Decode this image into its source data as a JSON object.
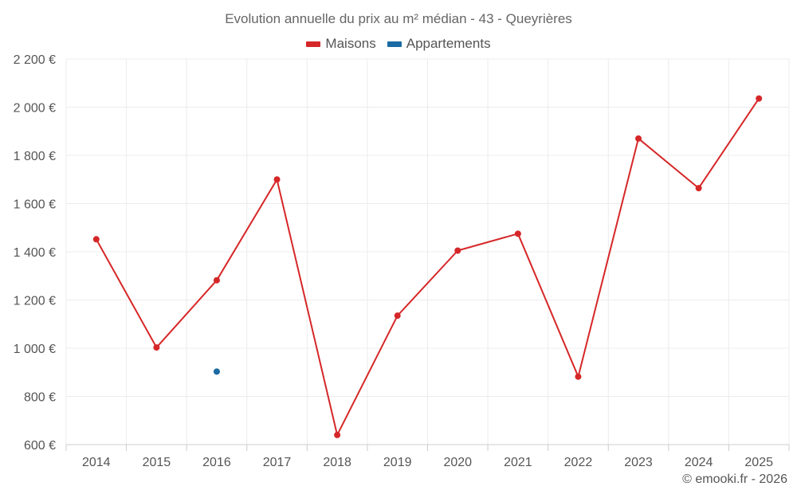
{
  "chart_data": {
    "type": "line",
    "title": "Evolution annuelle du prix au m² médian - 43 - Queyrières",
    "xlabel": "",
    "ylabel": "",
    "categories": [
      "2014",
      "2015",
      "2016",
      "2017",
      "2018",
      "2019",
      "2020",
      "2021",
      "2022",
      "2023",
      "2024",
      "2025"
    ],
    "ylim": [
      600,
      2200
    ],
    "y_ticks": [
      600,
      800,
      1000,
      1200,
      1400,
      1600,
      1800,
      2000,
      2200
    ],
    "y_tick_labels": [
      "600 €",
      "800 €",
      "1 000 €",
      "1 200 €",
      "1 400 €",
      "1 600 €",
      "1 800 €",
      "2 000 €",
      "2 200 €"
    ],
    "grid": true,
    "legend_position": "top",
    "series": [
      {
        "name": "Maisons",
        "color": "#d62728",
        "values": [
          1452,
          1003,
          1282,
          1700,
          640,
          1135,
          1405,
          1475,
          882,
          1870,
          1664,
          2036
        ]
      },
      {
        "name": "Appartements",
        "color": "#1a6aa3",
        "values": [
          null,
          null,
          903,
          null,
          null,
          null,
          null,
          null,
          null,
          null,
          null,
          null
        ]
      }
    ]
  },
  "credit": "© emooki.fr - 2026"
}
